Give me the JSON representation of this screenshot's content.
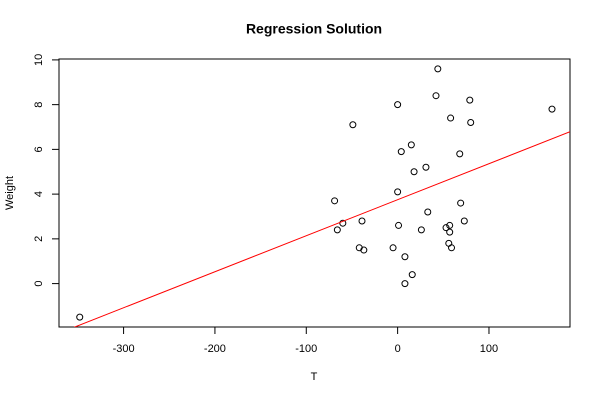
{
  "chart_data": {
    "type": "scatter",
    "title": "Regression Solution",
    "x_label": "T",
    "y_label": "Weight",
    "x": [
      -348,
      -69,
      -66,
      -60,
      -49,
      -39,
      -42,
      -37,
      -5,
      0,
      0,
      1,
      4,
      8,
      8,
      15,
      18,
      16,
      26,
      31,
      33,
      42,
      44,
      53,
      56,
      57,
      57,
      58,
      59,
      68,
      69,
      73,
      79,
      80,
      169
    ],
    "y": [
      -1.5,
      3.7,
      2.4,
      2.7,
      7.1,
      2.8,
      1.6,
      1.5,
      1.6,
      8.0,
      4.1,
      2.6,
      5.9,
      1.2,
      0.0,
      6.2,
      5.0,
      0.4,
      2.4,
      5.2,
      3.2,
      8.4,
      9.6,
      2.5,
      1.8,
      2.3,
      2.6,
      7.4,
      1.6,
      5.8,
      3.6,
      2.8,
      8.2,
      7.2,
      7.8
    ],
    "color": "#000000",
    "regression": {
      "intercept": 3.75,
      "slope": 0.0161,
      "color": "#ff0000"
    },
    "xlim": [
      -370.7,
      188.7
    ],
    "xticks": [
      -300,
      -200,
      -100,
      0,
      100
    ],
    "ylim": [
      -1.94,
      10.04
    ],
    "yticks": [
      0,
      2,
      4,
      6,
      8,
      10
    ]
  }
}
